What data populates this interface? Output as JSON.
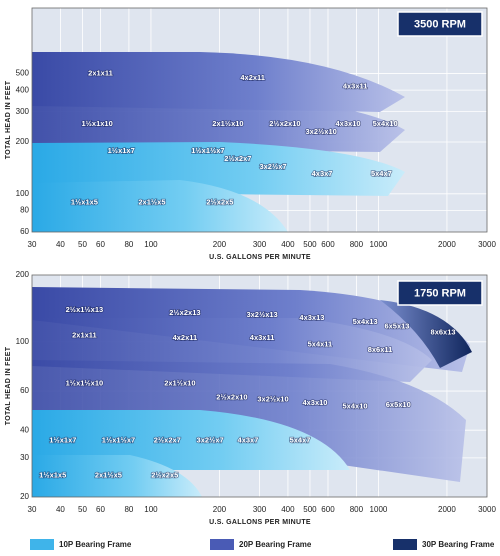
{
  "chart_data": [
    {
      "type": "coverage",
      "title": "3500 RPM",
      "xlabel": "U.S. GALLONS PER MINUTE",
      "ylabel": "TOTAL HEAD IN FEET",
      "log_x": true,
      "log_y": true,
      "grid": true,
      "xlim": [
        30,
        3000
      ],
      "xticks": [
        30,
        40,
        50,
        60,
        80,
        100,
        200,
        300,
        400,
        500,
        600,
        800,
        1000,
        2000,
        3000
      ],
      "ylim": [
        60,
        1200
      ],
      "yticks": [
        60,
        80,
        100,
        200,
        300,
        400,
        500
      ],
      "labels": [
        {
          "text": "2x1x11",
          "x": 60,
          "y": 500
        },
        {
          "text": "4x2x11",
          "x": 280,
          "y": 470
        },
        {
          "text": "4x3x11",
          "x": 790,
          "y": 420
        },
        {
          "text": "1½x1x10",
          "x": 58,
          "y": 255
        },
        {
          "text": "2x1½x10",
          "x": 218,
          "y": 255
        },
        {
          "text": "2½x2x10",
          "x": 388,
          "y": 255
        },
        {
          "text": "3x2½x10",
          "x": 560,
          "y": 229
        },
        {
          "text": "4x3x10",
          "x": 735,
          "y": 255
        },
        {
          "text": "5x4x10",
          "x": 1070,
          "y": 255
        },
        {
          "text": "1½x1x7",
          "x": 74,
          "y": 177
        },
        {
          "text": "1½x1½x7",
          "x": 178,
          "y": 177
        },
        {
          "text": "2½x2x7",
          "x": 241,
          "y": 159
        },
        {
          "text": "3x2½x7",
          "x": 344,
          "y": 143
        },
        {
          "text": "4x3x7",
          "x": 565,
          "y": 130
        },
        {
          "text": "5x4x7",
          "x": 1030,
          "y": 130
        },
        {
          "text": "1½x1x5",
          "x": 51,
          "y": 89
        },
        {
          "text": "2x1½x5",
          "x": 101,
          "y": 89
        },
        {
          "text": "2½x2x5",
          "x": 201,
          "y": 89
        }
      ]
    },
    {
      "type": "coverage",
      "title": "1750 RPM",
      "xlabel": "U.S. GALLONS PER MINUTE",
      "ylabel": "TOTAL HEAD IN FEET",
      "log_x": true,
      "log_y": true,
      "grid": true,
      "xlim": [
        30,
        3000
      ],
      "xticks": [
        30,
        40,
        50,
        60,
        80,
        100,
        200,
        300,
        400,
        500,
        600,
        800,
        1000,
        2000,
        3000
      ],
      "ylim": [
        20,
        200
      ],
      "yticks": [
        20,
        30,
        40,
        60,
        100,
        200
      ],
      "labels": [
        {
          "text": "2½x1½x13",
          "x": 51,
          "y": 139
        },
        {
          "text": "2½x2x13",
          "x": 141,
          "y": 135
        },
        {
          "text": "3x2½x13",
          "x": 308,
          "y": 132
        },
        {
          "text": "4x3x13",
          "x": 510,
          "y": 128
        },
        {
          "text": "5x4x13",
          "x": 874,
          "y": 123
        },
        {
          "text": "6x5x13",
          "x": 1206,
          "y": 117
        },
        {
          "text": "8x6x13",
          "x": 1923,
          "y": 110
        },
        {
          "text": "2x1x11",
          "x": 51,
          "y": 107
        },
        {
          "text": "4x2x11",
          "x": 141,
          "y": 104
        },
        {
          "text": "4x3x11",
          "x": 308,
          "y": 104
        },
        {
          "text": "5x4x11",
          "x": 553,
          "y": 97
        },
        {
          "text": "8x6x11",
          "x": 1016,
          "y": 92
        },
        {
          "text": "1½x1½x10",
          "x": 51,
          "y": 65
        },
        {
          "text": "2x1½x10",
          "x": 134,
          "y": 65
        },
        {
          "text": "2½x2x10",
          "x": 227,
          "y": 56
        },
        {
          "text": "3x2½x10",
          "x": 344,
          "y": 55
        },
        {
          "text": "4x3x10",
          "x": 526,
          "y": 53
        },
        {
          "text": "5x4x10",
          "x": 789,
          "y": 51
        },
        {
          "text": "6x5x10",
          "x": 1222,
          "y": 52
        },
        {
          "text": "1½x1x7",
          "x": 41,
          "y": 36
        },
        {
          "text": "1½x1½x7",
          "x": 72,
          "y": 36
        },
        {
          "text": "2½x2x7",
          "x": 118,
          "y": 36
        },
        {
          "text": "3x2½x7",
          "x": 182,
          "y": 36
        },
        {
          "text": "4x3x7",
          "x": 267,
          "y": 36
        },
        {
          "text": "5x4x7",
          "x": 452,
          "y": 36
        },
        {
          "text": "1½x1x5",
          "x": 37,
          "y": 25
        },
        {
          "text": "2x1½x5",
          "x": 65,
          "y": 25
        },
        {
          "text": "2½x2x5",
          "x": 115,
          "y": 25
        }
      ]
    }
  ],
  "legend": [
    {
      "name": "10P Bearing Frame",
      "color": "#3fb4ea"
    },
    {
      "name": "20P Bearing Frame",
      "color": "#4a5bb5"
    },
    {
      "name": "30P Bearing Frame",
      "color": "#17306a"
    }
  ]
}
